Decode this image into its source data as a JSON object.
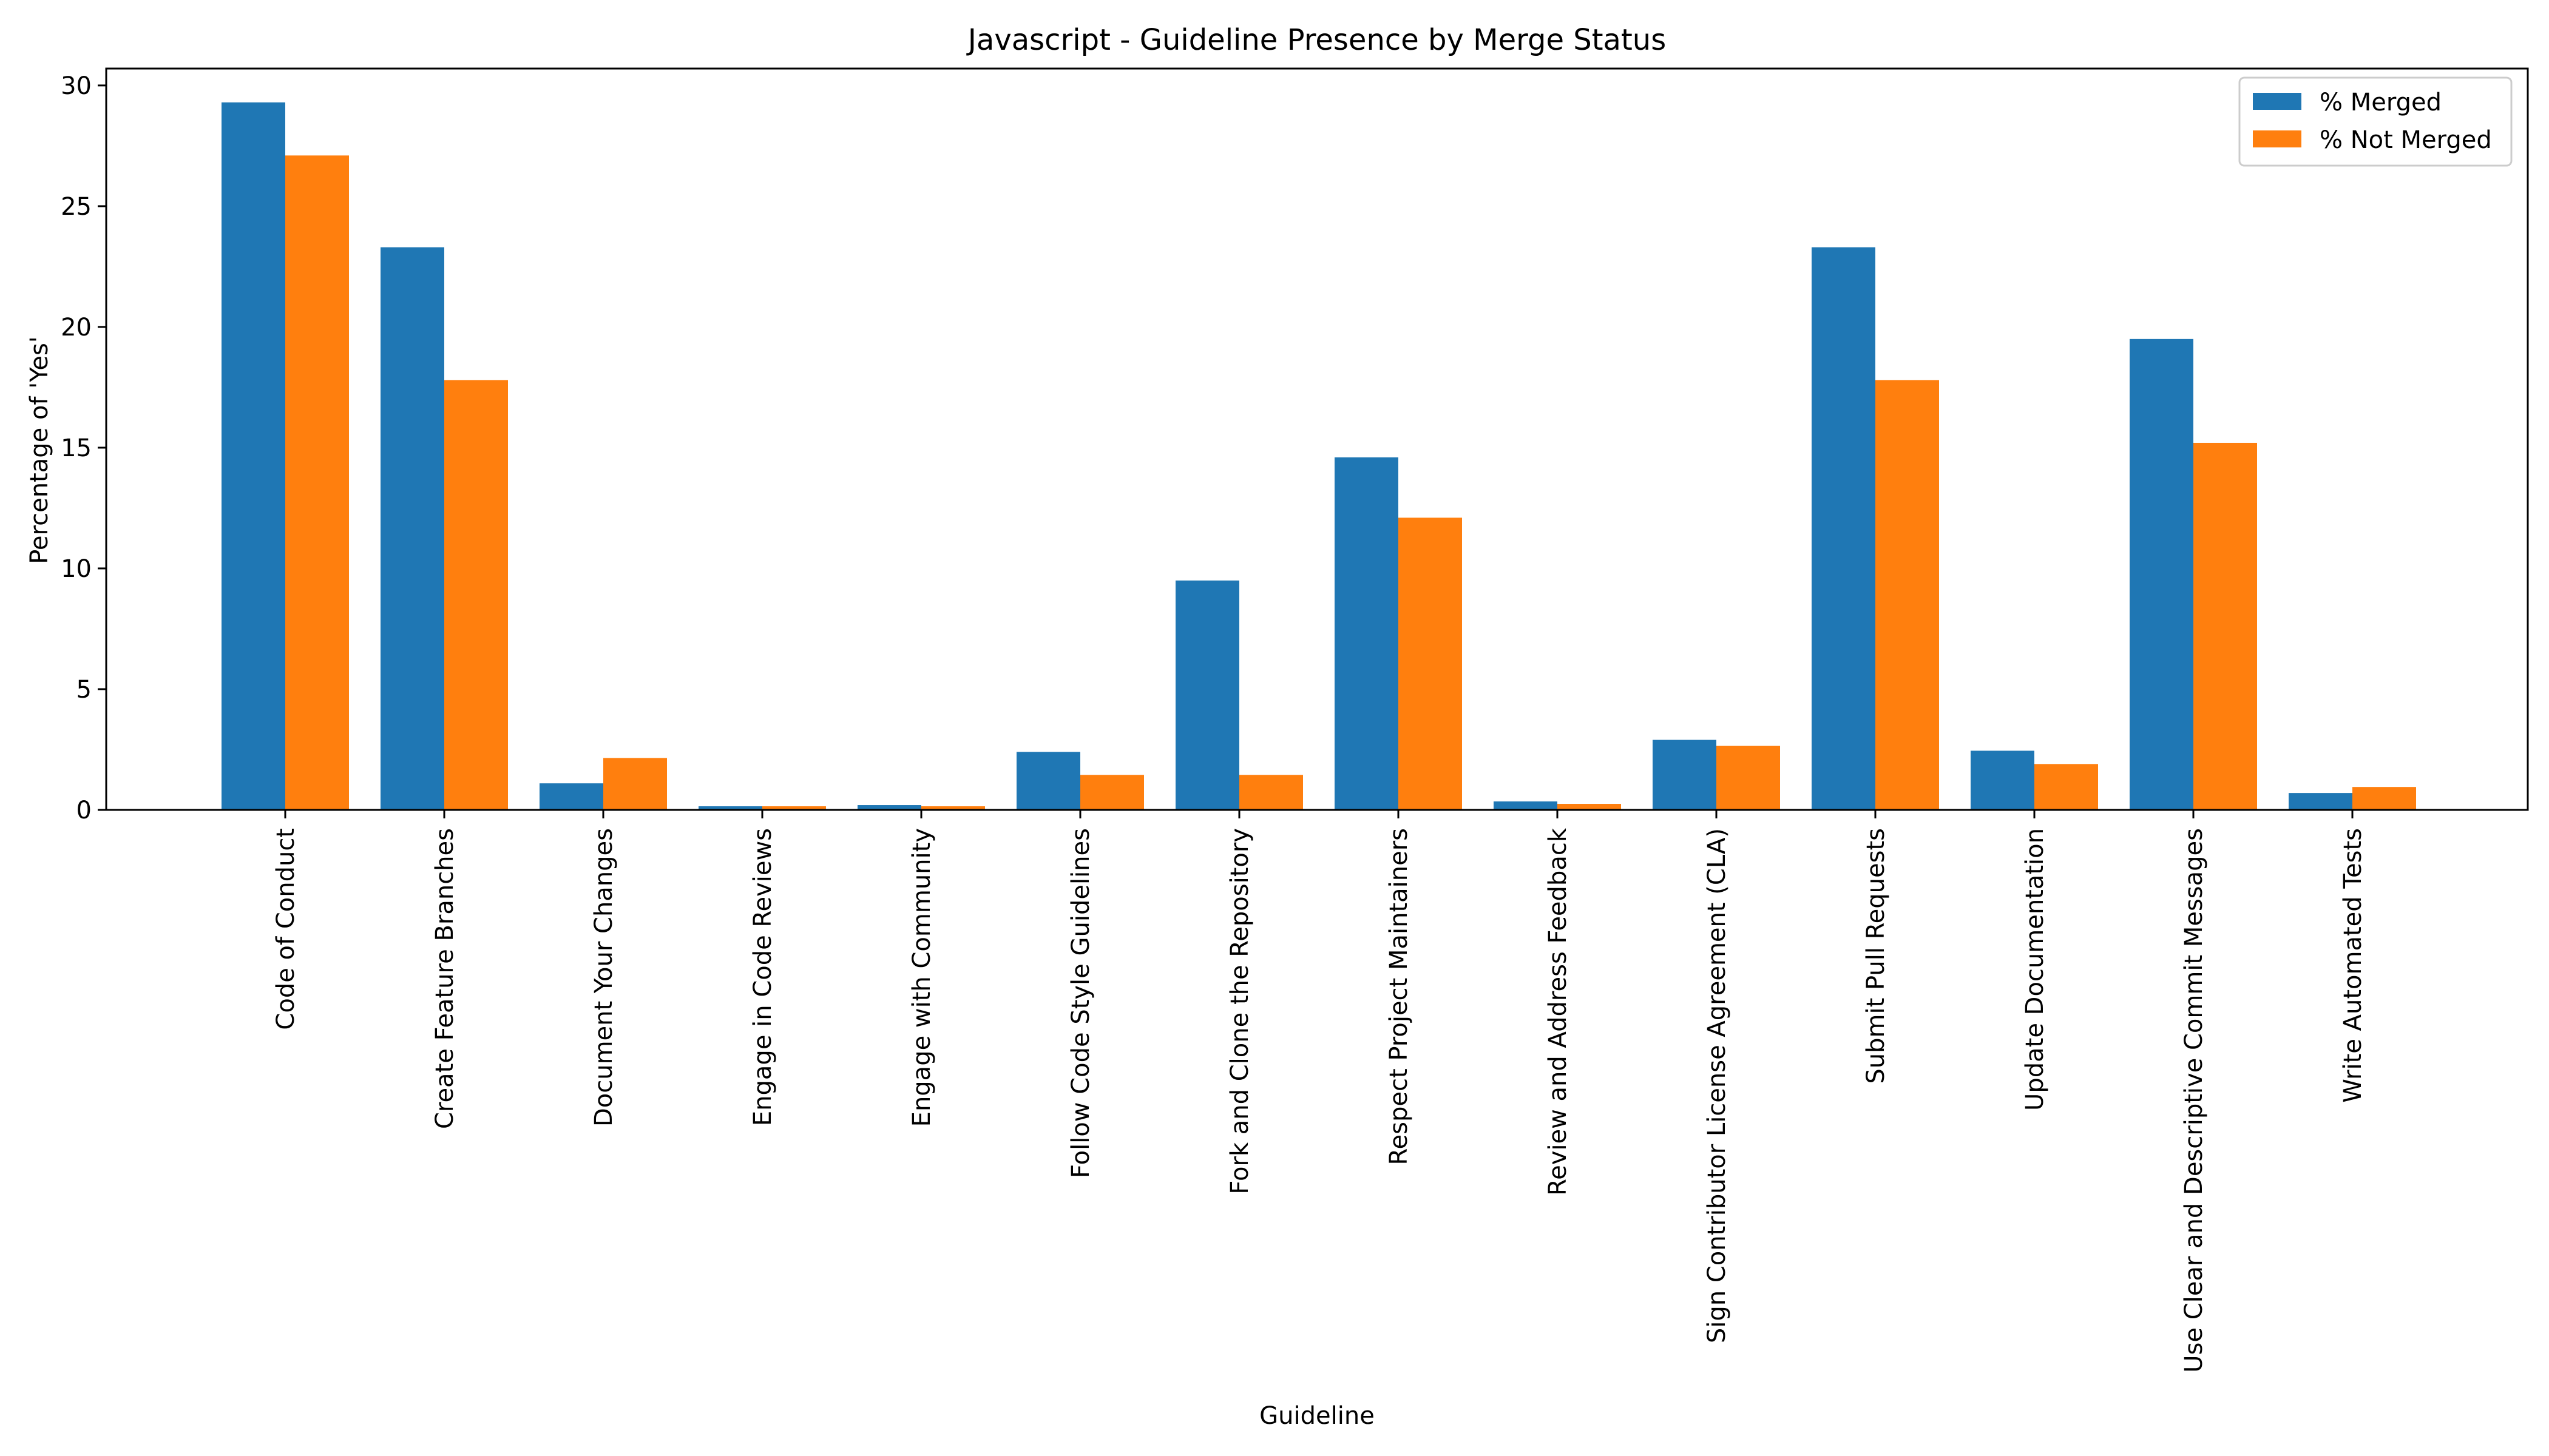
{
  "chart_data": {
    "type": "bar",
    "title": "Javascript - Guideline Presence by Merge Status",
    "xlabel": "Guideline",
    "ylabel": "Percentage of 'Yes'",
    "ylim": [
      0,
      30.7
    ],
    "yticks": [
      "0",
      "5",
      "10",
      "15",
      "20",
      "25",
      "30"
    ],
    "categories": [
      "Code of Conduct",
      "Create Feature Branches",
      "Document Your Changes",
      "Engage in Code Reviews",
      "Engage with Community",
      "Follow Code Style Guidelines",
      "Fork and Clone the Repository",
      "Respect Project Maintainers",
      "Review and Address Feedback",
      "Sign Contributor License Agreement (CLA)",
      "Submit Pull Requests",
      "Update Documentation",
      "Use Clear and Descriptive Commit Messages",
      "Write Automated Tests"
    ],
    "series": [
      {
        "name": "% Merged",
        "color": "#1f77b4",
        "values": [
          29.3,
          23.3,
          1.1,
          0.15,
          0.2,
          2.4,
          9.5,
          14.6,
          0.35,
          2.9,
          23.3,
          2.45,
          19.5,
          0.7
        ]
      },
      {
        "name": "% Not Merged",
        "color": "#ff7f0e",
        "values": [
          27.1,
          17.8,
          2.15,
          0.15,
          0.15,
          1.45,
          1.45,
          12.1,
          0.25,
          2.65,
          17.8,
          1.9,
          15.2,
          0.95
        ]
      }
    ],
    "legend_position": "top-right",
    "grid": false
  }
}
